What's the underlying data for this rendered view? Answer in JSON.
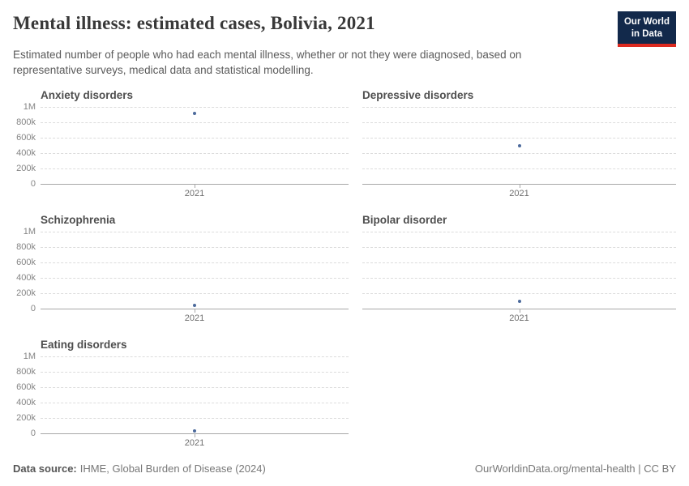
{
  "header": {
    "title": "Mental illness: estimated cases, Bolivia, 2021",
    "subtitle": "Estimated number of people who had each mental illness, whether or not they were diagnosed, based on representative surveys, medical data and statistical modelling.",
    "logo": {
      "line1": "Our World",
      "line2": "in Data"
    }
  },
  "chart_data": {
    "type": "scatter",
    "title": "Mental illness: estimated cases, Bolivia, 2021",
    "facets": [
      {
        "title": "Anxiety disorders",
        "points": [
          {
            "x": "2021",
            "y": 915000
          }
        ]
      },
      {
        "title": "Depressive disorders",
        "points": [
          {
            "x": "2021",
            "y": 490000
          }
        ]
      },
      {
        "title": "Schizophrenia",
        "points": [
          {
            "x": "2021",
            "y": 45000
          }
        ]
      },
      {
        "title": "Bipolar disorder",
        "points": [
          {
            "x": "2021",
            "y": 95000
          }
        ]
      },
      {
        "title": "Eating disorders",
        "points": [
          {
            "x": "2021",
            "y": 30000
          }
        ]
      }
    ],
    "ylim": [
      0,
      1000000
    ],
    "y_ticks": [
      {
        "label": "1M",
        "value": 1000000
      },
      {
        "label": "800k",
        "value": 800000
      },
      {
        "label": "600k",
        "value": 600000
      },
      {
        "label": "400k",
        "value": 400000
      },
      {
        "label": "200k",
        "value": 200000
      },
      {
        "label": "0",
        "value": 0
      }
    ],
    "x_tick_label": "2021",
    "grid": true,
    "legend": "none",
    "point_color": "#4c6a9c"
  },
  "footer": {
    "source_label": "Data source:",
    "source_rest": "IHME, Global Burden of Disease (2024)",
    "right_text": "OurWorldinData.org/mental-health | CC BY"
  },
  "colors": {
    "point": "#4c6a9c",
    "logo_bg": "#12294b",
    "logo_red": "#dc2a20",
    "gridline": "#dcdcdc",
    "axis": "#a8a8a8",
    "tick_text": "#858585"
  }
}
